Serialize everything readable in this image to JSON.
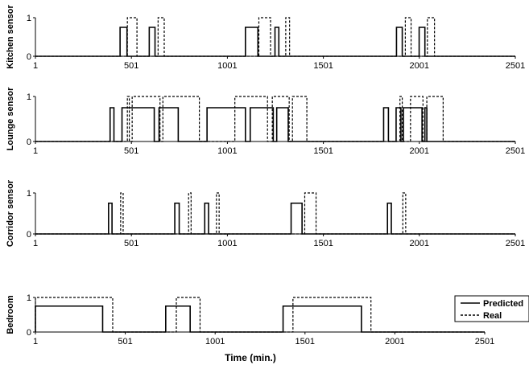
{
  "legend": {
    "predicted": "Predicted",
    "real": "Real",
    "position": "right, beside bottom panel"
  },
  "chart_data": [
    {
      "type": "line",
      "ylabel": "Kitchen sensor",
      "xlim": [
        1,
        2501
      ],
      "ylim": [
        0,
        1
      ],
      "xticks": [
        "1",
        "501",
        "1001",
        "1501",
        "2001",
        "2501"
      ],
      "yticks": [
        "0",
        "1"
      ],
      "series": [
        {
          "name": "Predicted",
          "style": "solid",
          "level": 0.75,
          "intervals": [
            [
              442,
              478
            ],
            [
              594,
              624
            ],
            [
              1095,
              1160
            ],
            [
              1249,
              1269
            ],
            [
              1882,
              1912
            ],
            [
              2000,
              2030
            ]
          ]
        },
        {
          "name": "Real",
          "style": "dashed",
          "level": 1,
          "intervals": [
            [
              480,
              530
            ],
            [
              640,
              672
            ],
            [
              1165,
              1226
            ],
            [
              1305,
              1325
            ],
            [
              1928,
              1958
            ],
            [
              2043,
              2080
            ]
          ]
        }
      ]
    },
    {
      "type": "line",
      "ylabel": "Lounge sensor",
      "xlim": [
        1,
        2501
      ],
      "ylim": [
        0,
        1
      ],
      "xticks": [
        "1",
        "501",
        "1001",
        "1501",
        "2001",
        "2501"
      ],
      "yticks": [
        "0",
        "1"
      ],
      "series": [
        {
          "name": "Predicted",
          "style": "solid",
          "level": 0.75,
          "intervals": [
            [
              390,
              410
            ],
            [
              452,
              620
            ],
            [
              645,
              745
            ],
            [
              895,
              1095
            ],
            [
              1120,
              1240
            ],
            [
              1258,
              1318
            ],
            [
              1815,
              1840
            ],
            [
              1880,
              1905
            ],
            [
              1918,
              2015
            ],
            [
              2030,
              2040
            ]
          ]
        },
        {
          "name": "Real",
          "style": "dashed",
          "level": 1,
          "intervals": [
            [
              480,
              490
            ],
            [
              505,
              650
            ],
            [
              665,
              855
            ],
            [
              1040,
              1210
            ],
            [
              1235,
              1323
            ],
            [
              1340,
              1415
            ],
            [
              1900,
              1912
            ],
            [
              1955,
              2020
            ],
            [
              2040,
              2125
            ]
          ]
        }
      ]
    },
    {
      "type": "line",
      "ylabel": "Corridor sensor",
      "xlim": [
        1,
        2501
      ],
      "ylim": [
        0,
        1
      ],
      "xticks": [
        "1",
        "501",
        "1001",
        "1501",
        "2001",
        "2501"
      ],
      "yticks": [
        "0",
        "1"
      ],
      "series": [
        {
          "name": "Predicted",
          "style": "solid",
          "level": 0.75,
          "intervals": [
            [
              382,
              400
            ],
            [
              727,
              750
            ],
            [
              883,
              903
            ],
            [
              1333,
              1390
            ],
            [
              1835,
              1855
            ]
          ]
        },
        {
          "name": "Real",
          "style": "dashed",
          "level": 1,
          "intervals": [
            [
              445,
              458
            ],
            [
              799,
              812
            ],
            [
              944,
              958
            ],
            [
              1404,
              1463
            ],
            [
              1915,
              1930
            ]
          ]
        }
      ]
    },
    {
      "type": "line",
      "ylabel": "Bedroom",
      "xlabel": "Time (min.)",
      "xlim": [
        1,
        2501
      ],
      "ylim": [
        0,
        1
      ],
      "xticks": [
        "1",
        "501",
        "1001",
        "1501",
        "2001",
        "2501"
      ],
      "yticks": [
        "0",
        "1"
      ],
      "series": [
        {
          "name": "Predicted",
          "style": "solid",
          "level": 0.75,
          "intervals": [
            [
              1,
              375
            ],
            [
              726,
              862
            ],
            [
              1379,
              1815
            ]
          ]
        },
        {
          "name": "Real",
          "style": "dashed",
          "level": 1,
          "intervals": [
            [
              1,
              431
            ],
            [
              785,
              917
            ],
            [
              1434,
              1868
            ]
          ]
        }
      ]
    }
  ]
}
